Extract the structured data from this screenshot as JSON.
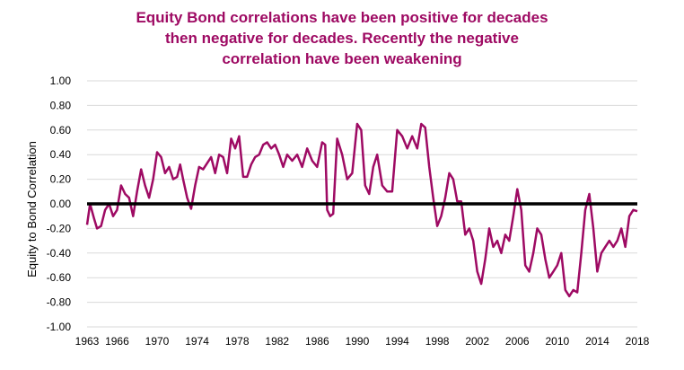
{
  "chart_data": {
    "type": "line",
    "title_lines": [
      "Equity Bond correlations have been positive for decades",
      "then negative for decades. Recently the negative",
      "correlation have been weakening"
    ],
    "xlabel": "",
    "ylabel": "Equity to Bond Correlation",
    "xlim": [
      1963,
      2018
    ],
    "ylim": [
      -1.0,
      1.0
    ],
    "x_ticks": [
      1963,
      1966,
      1970,
      1974,
      1978,
      1982,
      1986,
      1990,
      1994,
      1998,
      2002,
      2006,
      2010,
      2014,
      2018
    ],
    "y_ticks": [
      "1.00",
      "0.80",
      "0.60",
      "0.40",
      "0.20",
      "0.00",
      "-0.20",
      "-0.40",
      "-0.60",
      "-0.80",
      "-1.00"
    ],
    "y_tick_values": [
      1.0,
      0.8,
      0.6,
      0.4,
      0.2,
      0.0,
      -0.2,
      -0.4,
      -0.6,
      -0.8,
      -1.0
    ],
    "grid": "horizontal",
    "zero_line": true,
    "colors": {
      "series": "#9e0a63",
      "title": "#9e0a63",
      "grid": "#d9d9d9",
      "zero_line": "#000000"
    },
    "series": [
      {
        "x": [
          1963.0,
          1963.3,
          1963.7,
          1964.0,
          1964.4,
          1964.8,
          1965.2,
          1965.6,
          1966.0,
          1966.4,
          1966.8,
          1967.2,
          1967.6,
          1968.0,
          1968.4,
          1968.8,
          1969.2,
          1969.6,
          1970.0,
          1970.4,
          1970.8,
          1971.2,
          1971.6,
          1972.0,
          1972.3,
          1972.6,
          1973.0,
          1973.4,
          1973.8,
          1974.2,
          1974.6,
          1975.0,
          1975.4,
          1975.8,
          1976.2,
          1976.6,
          1977.0,
          1977.4,
          1977.8,
          1978.2,
          1978.6,
          1979.0,
          1979.4,
          1979.8,
          1980.2,
          1980.6,
          1981.0,
          1981.4,
          1981.8,
          1982.2,
          1982.6,
          1983.0,
          1983.5,
          1984.0,
          1984.5,
          1985.0,
          1985.5,
          1986.0,
          1986.5,
          1986.8,
          1987.0,
          1987.3,
          1987.6,
          1988.0,
          1988.5,
          1989.0,
          1989.5,
          1990.0,
          1990.4,
          1990.8,
          1991.2,
          1991.6,
          1992.0,
          1992.5,
          1993.0,
          1993.5,
          1994.0,
          1994.5,
          1995.0,
          1995.5,
          1996.0,
          1996.4,
          1996.8,
          1997.2,
          1997.6,
          1998.0,
          1998.4,
          1998.8,
          1999.2,
          1999.6,
          2000.0,
          2000.4,
          2000.8,
          2001.2,
          2001.6,
          2002.0,
          2002.4,
          2002.8,
          2003.2,
          2003.6,
          2004.0,
          2004.4,
          2004.8,
          2005.2,
          2005.6,
          2006.0,
          2006.4,
          2006.8,
          2007.2,
          2007.6,
          2008.0,
          2008.4,
          2008.8,
          2009.2,
          2009.6,
          2010.0,
          2010.4,
          2010.8,
          2011.2,
          2011.6,
          2012.0,
          2012.4,
          2012.8,
          2013.2,
          2013.6,
          2014.0,
          2014.4,
          2014.8,
          2015.2,
          2015.6,
          2016.0,
          2016.4,
          2016.8,
          2017.2,
          2017.6,
          2018.0
        ],
        "y": [
          -0.17,
          0.0,
          -0.12,
          -0.2,
          -0.18,
          -0.05,
          0.0,
          -0.1,
          -0.05,
          0.15,
          0.08,
          0.05,
          -0.1,
          0.1,
          0.28,
          0.15,
          0.05,
          0.2,
          0.42,
          0.38,
          0.25,
          0.3,
          0.2,
          0.22,
          0.32,
          0.2,
          0.05,
          -0.04,
          0.15,
          0.3,
          0.28,
          0.33,
          0.38,
          0.25,
          0.4,
          0.38,
          0.25,
          0.53,
          0.45,
          0.55,
          0.22,
          0.22,
          0.32,
          0.38,
          0.4,
          0.48,
          0.5,
          0.45,
          0.48,
          0.4,
          0.3,
          0.4,
          0.35,
          0.4,
          0.3,
          0.45,
          0.35,
          0.3,
          0.5,
          0.48,
          -0.05,
          -0.1,
          -0.08,
          0.53,
          0.4,
          0.2,
          0.25,
          0.65,
          0.6,
          0.15,
          0.08,
          0.3,
          0.4,
          0.15,
          0.1,
          0.1,
          0.6,
          0.55,
          0.45,
          0.55,
          0.45,
          0.65,
          0.62,
          0.3,
          0.05,
          -0.18,
          -0.1,
          0.05,
          0.25,
          0.2,
          0.02,
          0.02,
          -0.25,
          -0.2,
          -0.3,
          -0.55,
          -0.65,
          -0.45,
          -0.2,
          -0.35,
          -0.3,
          -0.4,
          -0.25,
          -0.3,
          -0.1,
          0.12,
          -0.05,
          -0.5,
          -0.55,
          -0.4,
          -0.2,
          -0.25,
          -0.45,
          -0.6,
          -0.55,
          -0.5,
          -0.4,
          -0.7,
          -0.75,
          -0.7,
          -0.72,
          -0.4,
          -0.05,
          0.08,
          -0.2,
          -0.55,
          -0.4,
          -0.35,
          -0.3,
          -0.35,
          -0.3,
          -0.2,
          -0.35,
          -0.1,
          -0.05,
          -0.06
        ]
      }
    ]
  }
}
